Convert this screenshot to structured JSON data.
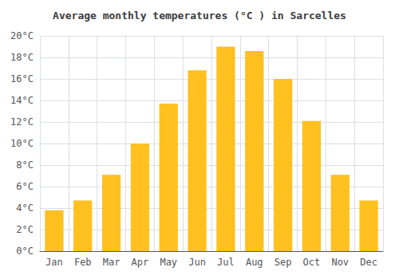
{
  "chart_data": {
    "type": "bar",
    "title": "Average monthly temperatures (°C ) in Sarcelles",
    "categories": [
      "Jan",
      "Feb",
      "Mar",
      "Apr",
      "May",
      "Jun",
      "Jul",
      "Aug",
      "Sep",
      "Oct",
      "Nov",
      "Dec"
    ],
    "values": [
      3.8,
      4.7,
      7.1,
      10.0,
      13.7,
      16.8,
      19.0,
      18.6,
      16.0,
      12.1,
      7.1,
      4.7
    ],
    "color": "#FFC020",
    "ylim": [
      0,
      20
    ],
    "yticks": [
      {
        "value": 0,
        "label": "0°C"
      },
      {
        "value": 2,
        "label": "2°C"
      },
      {
        "value": 4,
        "label": "4°C"
      },
      {
        "value": 6,
        "label": "6°C"
      },
      {
        "value": 8,
        "label": "8°C"
      },
      {
        "value": 10,
        "label": "10°C"
      },
      {
        "value": 12,
        "label": "12°C"
      },
      {
        "value": 14,
        "label": "14°C"
      },
      {
        "value": 16,
        "label": "16°C"
      },
      {
        "value": 18,
        "label": "18°C"
      },
      {
        "value": 20,
        "label": "20°C"
      }
    ],
    "grid": true
  }
}
